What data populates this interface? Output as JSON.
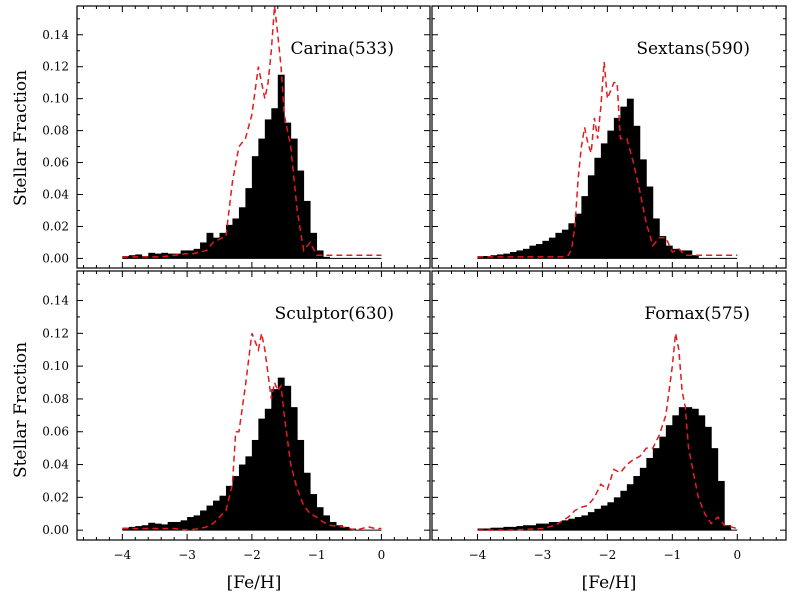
{
  "figure": {
    "xlabel": "[Fe/H]",
    "ylabel": "Stellar Fraction",
    "xlim": [
      -4.7,
      0.75
    ],
    "ylim": [
      -0.006,
      0.158
    ],
    "xticks": [
      -4,
      -3,
      -2,
      -1,
      0
    ],
    "xtick_labels": [
      "−4",
      "−3",
      "−2",
      "−1",
      "0"
    ],
    "yticks": [
      0.0,
      0.02,
      0.04,
      0.06,
      0.08,
      0.1,
      0.12,
      0.14
    ],
    "ytick_labels": [
      "0.00",
      "0.02",
      "0.04",
      "0.06",
      "0.08",
      "0.10",
      "0.12",
      "0.14"
    ],
    "bin_edges": [
      -4.0,
      -3.9,
      -3.8,
      -3.7,
      -3.6,
      -3.5,
      -3.4,
      -3.3,
      -3.2,
      -3.1,
      -3.0,
      -2.9,
      -2.8,
      -2.7,
      -2.6,
      -2.5,
      -2.4,
      -2.3,
      -2.2,
      -2.1,
      -2.0,
      -1.9,
      -1.8,
      -1.7,
      -1.6,
      -1.5,
      -1.4,
      -1.3,
      -1.2,
      -1.1,
      -1.0,
      -0.9,
      -0.8,
      -0.7,
      -0.6,
      -0.5,
      -0.4,
      -0.3,
      -0.2,
      -0.1,
      0.0
    ],
    "colors": {
      "histogram": "#000000",
      "model": "#e41a1c",
      "axes": "#000000"
    }
  },
  "chart_data": [
    {
      "type": "bar",
      "title": "Carina(533)",
      "histogram": [
        0.0015,
        0.002,
        0.0025,
        0.0015,
        0.0035,
        0.003,
        0.0035,
        0.003,
        0.003,
        0.005,
        0.005,
        0.006,
        0.01,
        0.016,
        0.013,
        0.016,
        0.021,
        0.025,
        0.032,
        0.044,
        0.064,
        0.075,
        0.087,
        0.094,
        0.115,
        0.085,
        0.075,
        0.055,
        0.036,
        0.016,
        0.005,
        0.001,
        0,
        0,
        0,
        0,
        0,
        0,
        0,
        0
      ],
      "model_x": [
        -4.0,
        -3.8,
        -3.6,
        -3.4,
        -3.2,
        -3.0,
        -2.9,
        -2.8,
        -2.7,
        -2.6,
        -2.5,
        -2.4,
        -2.3,
        -2.2,
        -2.1,
        -2.0,
        -1.95,
        -1.9,
        -1.85,
        -1.8,
        -1.75,
        -1.7,
        -1.65,
        -1.6,
        -1.55,
        -1.5,
        -1.4,
        -1.3,
        -1.2,
        -1.1,
        -1.0,
        -0.9,
        -0.8,
        -0.6,
        -0.4,
        -0.2,
        0.0
      ],
      "model_y": [
        0.001,
        0.001,
        0.001,
        0.001,
        0.002,
        0.003,
        0.003,
        0.004,
        0.005,
        0.01,
        0.012,
        0.014,
        0.048,
        0.07,
        0.075,
        0.09,
        0.105,
        0.12,
        0.11,
        0.1,
        0.11,
        0.13,
        0.158,
        0.14,
        0.12,
        0.09,
        0.07,
        0.03,
        0.005,
        0.01,
        0.002,
        0.002,
        0.002,
        0.002,
        0.002,
        0.002,
        0.002
      ]
    },
    {
      "type": "bar",
      "title": "Sextans(590)",
      "histogram": [
        0.0015,
        0.0015,
        0.002,
        0.0025,
        0.003,
        0.004,
        0.005,
        0.006,
        0.008,
        0.009,
        0.011,
        0.013,
        0.016,
        0.018,
        0.022,
        0.028,
        0.039,
        0.052,
        0.063,
        0.072,
        0.08,
        0.088,
        0.095,
        0.1,
        0.083,
        0.062,
        0.045,
        0.025,
        0.014,
        0.008,
        0.006,
        0.005,
        0.005,
        0.002,
        0,
        0,
        0,
        0,
        0,
        0
      ],
      "model_x": [
        -4.0,
        -3.6,
        -3.2,
        -2.9,
        -2.8,
        -2.7,
        -2.6,
        -2.55,
        -2.5,
        -2.45,
        -2.4,
        -2.35,
        -2.3,
        -2.25,
        -2.2,
        -2.15,
        -2.1,
        -2.05,
        -2.0,
        -1.95,
        -1.9,
        -1.85,
        -1.8,
        -1.7,
        -1.6,
        -1.5,
        -1.4,
        -1.3,
        -1.2,
        -1.1,
        -1.0,
        -0.9,
        -0.8,
        -0.6,
        -0.4,
        -0.2,
        0.0
      ],
      "model_y": [
        0.001,
        0.001,
        0.001,
        0.001,
        0.001,
        0.001,
        0.002,
        0.006,
        0.02,
        0.05,
        0.07,
        0.082,
        0.072,
        0.066,
        0.088,
        0.075,
        0.095,
        0.123,
        0.1,
        0.105,
        0.11,
        0.11,
        0.075,
        0.075,
        0.06,
        0.042,
        0.022,
        0.008,
        0.013,
        0.013,
        0.004,
        0.006,
        0.002,
        0.002,
        0.002,
        0.002,
        0.002
      ]
    },
    {
      "type": "bar",
      "title": "Sculptor(630)",
      "histogram": [
        0.0015,
        0.002,
        0.0025,
        0.003,
        0.0045,
        0.004,
        0.0035,
        0.005,
        0.005,
        0.006,
        0.008,
        0.009,
        0.012,
        0.015,
        0.018,
        0.021,
        0.027,
        0.033,
        0.04,
        0.045,
        0.055,
        0.068,
        0.074,
        0.086,
        0.093,
        0.088,
        0.075,
        0.055,
        0.035,
        0.022,
        0.014,
        0.009,
        0.005,
        0.003,
        0.002,
        0.001,
        0,
        0,
        0,
        0
      ],
      "model_x": [
        -4.0,
        -3.6,
        -3.2,
        -3.0,
        -2.8,
        -2.7,
        -2.6,
        -2.5,
        -2.4,
        -2.3,
        -2.25,
        -2.2,
        -2.1,
        -2.0,
        -1.95,
        -1.9,
        -1.85,
        -1.8,
        -1.7,
        -1.65,
        -1.6,
        -1.55,
        -1.5,
        -1.4,
        -1.3,
        -1.2,
        -1.1,
        -1.0,
        -0.9,
        -0.8,
        -0.6,
        -0.5,
        -0.4,
        -0.3,
        -0.2,
        -0.1,
        0.0
      ],
      "model_y": [
        0.001,
        0.001,
        0.001,
        0.0,
        0.001,
        0.002,
        0.004,
        0.008,
        0.012,
        0.028,
        0.06,
        0.06,
        0.088,
        0.12,
        0.115,
        0.11,
        0.12,
        0.11,
        0.08,
        0.09,
        0.085,
        0.088,
        0.07,
        0.04,
        0.025,
        0.015,
        0.01,
        0.008,
        0.005,
        0.003,
        0.002,
        0.001,
        0.0,
        0.001,
        0.002,
        0.001,
        0.001
      ]
    },
    {
      "type": "bar",
      "title": "Fornax(575)",
      "histogram": [
        0.001,
        0.001,
        0.0015,
        0.0015,
        0.002,
        0.002,
        0.0025,
        0.003,
        0.003,
        0.004,
        0.004,
        0.005,
        0.005,
        0.006,
        0.007,
        0.008,
        0.009,
        0.011,
        0.013,
        0.015,
        0.017,
        0.02,
        0.024,
        0.028,
        0.033,
        0.038,
        0.044,
        0.05,
        0.057,
        0.064,
        0.07,
        0.075,
        0.075,
        0.074,
        0.07,
        0.063,
        0.05,
        0.03,
        0.003,
        0
      ],
      "model_x": [
        -4.0,
        -3.5,
        -3.0,
        -2.8,
        -2.6,
        -2.5,
        -2.4,
        -2.3,
        -2.2,
        -2.1,
        -2.0,
        -1.9,
        -1.8,
        -1.7,
        -1.6,
        -1.5,
        -1.4,
        -1.3,
        -1.2,
        -1.1,
        -1.0,
        -0.95,
        -0.9,
        -0.85,
        -0.8,
        -0.75,
        -0.7,
        -0.6,
        -0.5,
        -0.4,
        -0.3,
        -0.2,
        0.0
      ],
      "model_y": [
        0.0,
        0.0,
        0.001,
        0.003,
        0.008,
        0.012,
        0.014,
        0.015,
        0.02,
        0.028,
        0.025,
        0.037,
        0.035,
        0.04,
        0.043,
        0.045,
        0.05,
        0.05,
        0.058,
        0.07,
        0.1,
        0.12,
        0.11,
        0.085,
        0.075,
        0.05,
        0.04,
        0.02,
        0.01,
        0.004,
        0.008,
        0.003,
        0.001
      ]
    }
  ]
}
